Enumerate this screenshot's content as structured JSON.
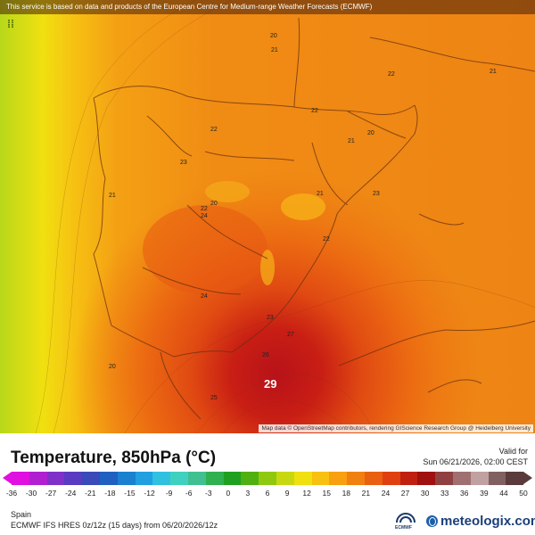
{
  "notice": "This service is based on data and products of the European Centre for Medium-range Weather Forecasts (ECMWF)",
  "tool_icon": "layers-icon",
  "attribution": "Map data © OpenStreetMap contributors, rendering GIScience Research Group @ Heidelberg University",
  "labels": [
    {
      "id": "l1",
      "text": "20"
    },
    {
      "id": "l2",
      "text": "21"
    },
    {
      "id": "l3",
      "text": "22"
    },
    {
      "id": "l4",
      "text": "21"
    },
    {
      "id": "l5",
      "text": "22"
    },
    {
      "id": "l6",
      "text": "20"
    },
    {
      "id": "l7",
      "text": "21"
    },
    {
      "id": "l8",
      "text": "22"
    },
    {
      "id": "l9",
      "text": "23"
    },
    {
      "id": "l10",
      "text": "21"
    },
    {
      "id": "l11",
      "text": "20"
    },
    {
      "id": "l12",
      "text": "22"
    },
    {
      "id": "l13",
      "text": "24"
    },
    {
      "id": "l14",
      "text": "21"
    },
    {
      "id": "l15",
      "text": "23"
    },
    {
      "id": "l16",
      "text": "22"
    },
    {
      "id": "l17",
      "text": "24"
    },
    {
      "id": "l18",
      "text": "23"
    },
    {
      "id": "l19",
      "text": "27"
    },
    {
      "id": "l20",
      "text": "26"
    },
    {
      "id": "l21",
      "text": "20"
    },
    {
      "id": "l22",
      "text": "25"
    }
  ],
  "max_label": "29",
  "legend": {
    "title": "Temperature, 850hPa (°C)",
    "valid_label": "Valid for",
    "valid_time": "Sun 06/21/2026, 02:00 CEST",
    "ticks": [
      "-36",
      "-30",
      "-27",
      "-24",
      "-21",
      "-18",
      "-15",
      "-12",
      "-9",
      "-6",
      "-3",
      "0",
      "3",
      "6",
      "9",
      "12",
      "15",
      "18",
      "21",
      "24",
      "27",
      "30",
      "33",
      "36",
      "39",
      "44",
      "50"
    ],
    "colors": [
      "#e010e0",
      "#b020d0",
      "#8030c8",
      "#5a3ac0",
      "#3a4ab8",
      "#2060c0",
      "#1a80d0",
      "#20a0e0",
      "#30c0e0",
      "#40d0c0",
      "#40c090",
      "#30b050",
      "#20a020",
      "#50b010",
      "#90c810",
      "#c8d810",
      "#f0e010",
      "#f8c010",
      "#f8a010",
      "#f08010",
      "#e86010",
      "#e04010",
      "#c02010",
      "#a01010",
      "#904040",
      "#a07070",
      "#c0a0a0",
      "#806060",
      "#5a3a3a"
    ]
  },
  "footer": {
    "region": "Spain",
    "model": "ECMWF IFS HRES 0z/12z (15 days) from 06/20/2026/12z",
    "ecmwf": "ECMWF",
    "brand": "meteologix.com"
  }
}
